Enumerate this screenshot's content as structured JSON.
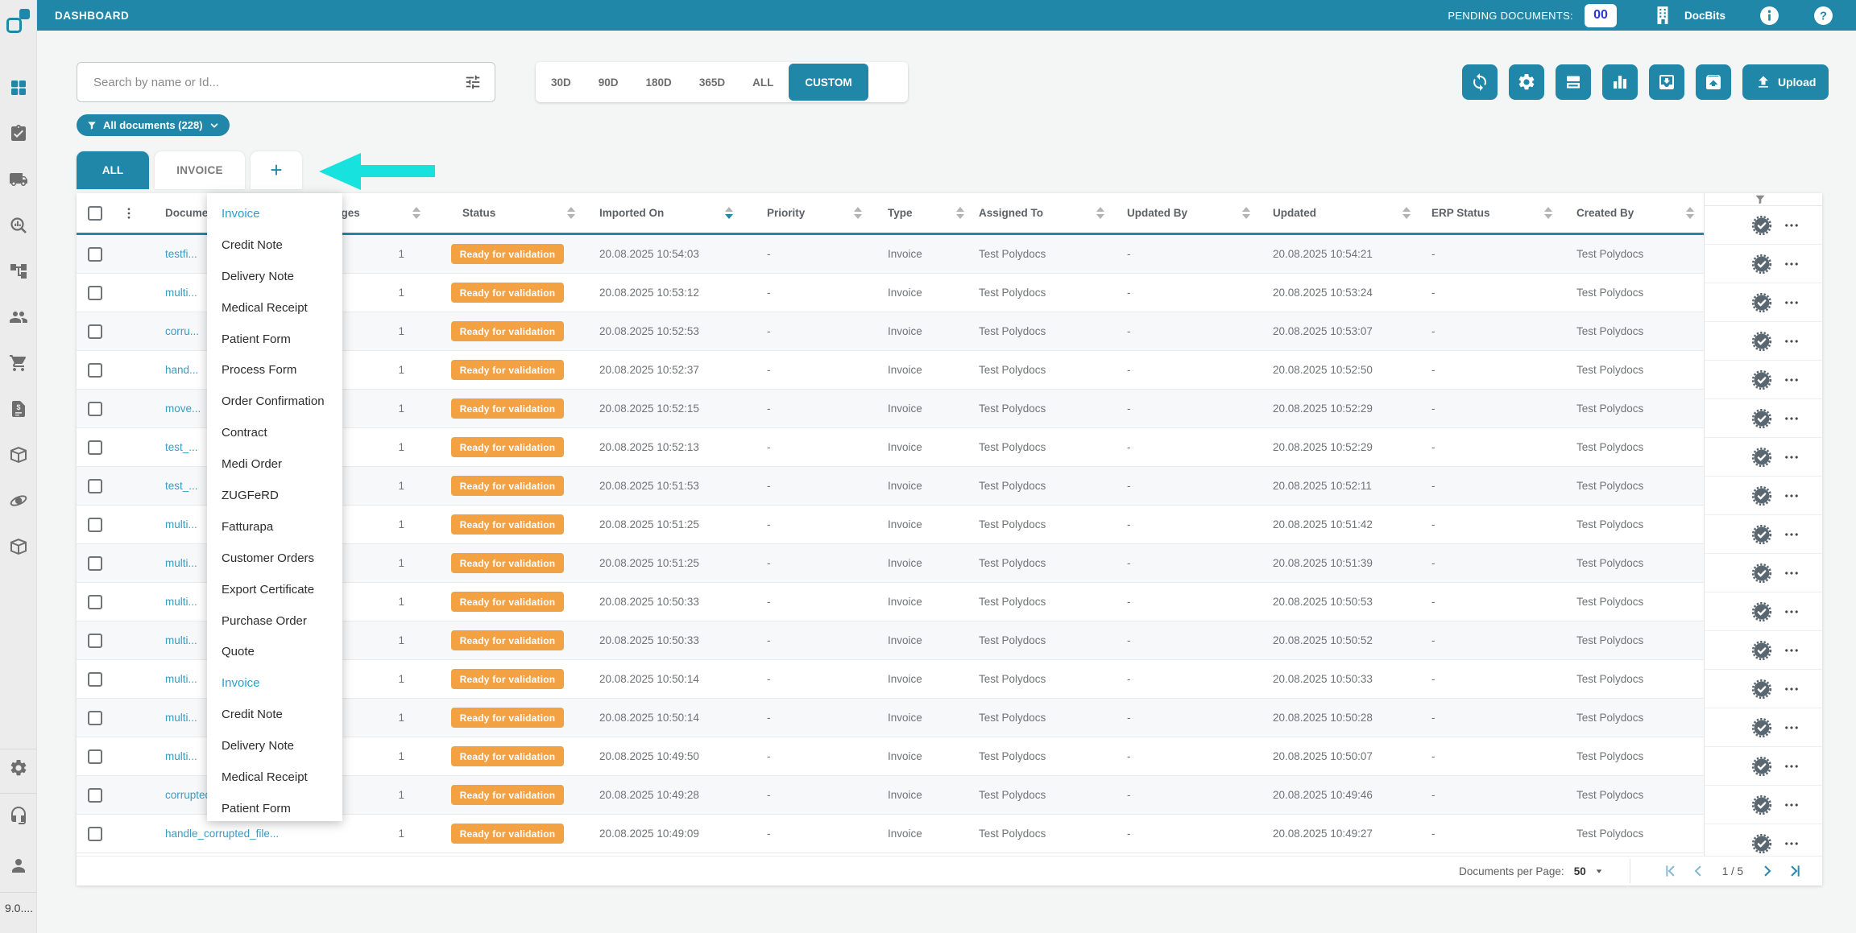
{
  "colors": {
    "accent": "#2187A8",
    "badge_orange": "#F2A143",
    "arrow_cyan": "#17E2DD",
    "link": "#3A9CC2",
    "pending_count": "#2D35D8"
  },
  "topbar": {
    "title": "DASHBOARD",
    "pending_label": "PENDING DOCUMENTS:",
    "pending_count": "00",
    "brand": "DocBits",
    "brand_icon": "building",
    "info_icon": "info",
    "help_icon": "help"
  },
  "sidebar": {
    "items": [
      {
        "icon": "dashboard",
        "active": true
      },
      {
        "icon": "clipboard-check",
        "active": false
      },
      {
        "icon": "truck",
        "active": false
      },
      {
        "icon": "search-chart",
        "active": false
      },
      {
        "icon": "workflow",
        "active": false
      },
      {
        "icon": "users",
        "active": false
      },
      {
        "icon": "cart",
        "active": false
      },
      {
        "icon": "invoice",
        "active": false
      },
      {
        "icon": "package",
        "active": false
      },
      {
        "icon": "orbit",
        "active": false
      },
      {
        "icon": "package-alt",
        "active": false
      }
    ],
    "bottom_items": [
      {
        "icon": "settings"
      },
      {
        "icon": "headset"
      },
      {
        "icon": "person"
      }
    ],
    "version": "9.0...."
  },
  "toolbar": {
    "search_placeholder": "Search by name or Id...",
    "search_filter_icon": "tune",
    "date_filters": [
      {
        "label": "30D",
        "active": false
      },
      {
        "label": "90D",
        "active": false
      },
      {
        "label": "180D",
        "active": false
      },
      {
        "label": "365D",
        "active": false
      },
      {
        "label": "ALL",
        "active": false
      },
      {
        "label": "CUSTOM",
        "active": true
      }
    ],
    "actions": [
      {
        "icon": "sync"
      },
      {
        "icon": "settings"
      },
      {
        "icon": "scanner"
      },
      {
        "icon": "bar-chart"
      },
      {
        "icon": "inbox-import"
      },
      {
        "icon": "unarchive"
      }
    ],
    "upload_label": "Upload",
    "upload_icon": "upload"
  },
  "filter_pill": {
    "icon": "funnel",
    "label": "All documents (228)",
    "chevron": "chevron-down"
  },
  "tabs": {
    "all": "ALL",
    "invoice": "INVOICE",
    "add": "+"
  },
  "type_menu": {
    "items": [
      {
        "label": "Invoice",
        "highlighted": true
      },
      {
        "label": "Credit Note",
        "highlighted": false
      },
      {
        "label": "Delivery Note",
        "highlighted": false
      },
      {
        "label": "Medical Receipt",
        "highlighted": false
      },
      {
        "label": "Patient Form",
        "highlighted": false
      },
      {
        "label": "Process Form",
        "highlighted": false
      },
      {
        "label": "Order Confirmation",
        "highlighted": false
      },
      {
        "label": "Contract",
        "highlighted": false
      },
      {
        "label": "Medi Order",
        "highlighted": false
      },
      {
        "label": "ZUGFeRD",
        "highlighted": false
      },
      {
        "label": "Fatturapa",
        "highlighted": false
      },
      {
        "label": "Customer Orders",
        "highlighted": false
      },
      {
        "label": "Export Certificate",
        "highlighted": false
      },
      {
        "label": "Purchase Order",
        "highlighted": false
      },
      {
        "label": "Quote",
        "highlighted": false
      },
      {
        "label": "Invoice",
        "highlighted": true
      },
      {
        "label": "Credit Note",
        "highlighted": false
      },
      {
        "label": "Delivery Note",
        "highlighted": false
      },
      {
        "label": "Medical Receipt",
        "highlighted": false
      },
      {
        "label": "Patient Form",
        "highlighted": false
      }
    ]
  },
  "table": {
    "kebab_icon": "kebab",
    "columns": [
      {
        "label": "Document Name"
      },
      {
        "label": "Pages"
      },
      {
        "label": "Status"
      },
      {
        "label": "Imported On",
        "sorted": "desc"
      },
      {
        "label": "Priority"
      },
      {
        "label": "Type"
      },
      {
        "label": "Assigned To"
      },
      {
        "label": "Updated By"
      },
      {
        "label": "Updated"
      },
      {
        "label": "ERP Status"
      },
      {
        "label": "Created By"
      }
    ],
    "rows": [
      {
        "name": "testfi...",
        "pages": "1",
        "status": "Ready for validation",
        "imported": "20.08.2025 10:54:03",
        "priority": "-",
        "type": "Invoice",
        "assigned_to": "Test Polydocs",
        "updated_by": "-",
        "updated": "20.08.2025 10:54:21",
        "erp_status": "-",
        "created_by": "Test Polydocs"
      },
      {
        "name": "multi...",
        "pages": "1",
        "status": "Ready for validation",
        "imported": "20.08.2025 10:53:12",
        "priority": "-",
        "type": "Invoice",
        "assigned_to": "Test Polydocs",
        "updated_by": "-",
        "updated": "20.08.2025 10:53:24",
        "erp_status": "-",
        "created_by": "Test Polydocs"
      },
      {
        "name": "corru...",
        "pages": "1",
        "status": "Ready for validation",
        "imported": "20.08.2025 10:52:53",
        "priority": "-",
        "type": "Invoice",
        "assigned_to": "Test Polydocs",
        "updated_by": "-",
        "updated": "20.08.2025 10:53:07",
        "erp_status": "-",
        "created_by": "Test Polydocs"
      },
      {
        "name": "hand...",
        "pages": "1",
        "status": "Ready for validation",
        "imported": "20.08.2025 10:52:37",
        "priority": "-",
        "type": "Invoice",
        "assigned_to": "Test Polydocs",
        "updated_by": "-",
        "updated": "20.08.2025 10:52:50",
        "erp_status": "-",
        "created_by": "Test Polydocs"
      },
      {
        "name": "move...",
        "pages": "1",
        "status": "Ready for validation",
        "imported": "20.08.2025 10:52:15",
        "priority": "-",
        "type": "Invoice",
        "assigned_to": "Test Polydocs",
        "updated_by": "-",
        "updated": "20.08.2025 10:52:29",
        "erp_status": "-",
        "created_by": "Test Polydocs"
      },
      {
        "name": "test_...",
        "pages": "1",
        "status": "Ready for validation",
        "imported": "20.08.2025 10:52:13",
        "priority": "-",
        "type": "Invoice",
        "assigned_to": "Test Polydocs",
        "updated_by": "-",
        "updated": "20.08.2025 10:52:29",
        "erp_status": "-",
        "created_by": "Test Polydocs"
      },
      {
        "name": "test_...",
        "pages": "1",
        "status": "Ready for validation",
        "imported": "20.08.2025 10:51:53",
        "priority": "-",
        "type": "Invoice",
        "assigned_to": "Test Polydocs",
        "updated_by": "-",
        "updated": "20.08.2025 10:52:11",
        "erp_status": "-",
        "created_by": "Test Polydocs"
      },
      {
        "name": "multi...",
        "pages": "1",
        "status": "Ready for validation",
        "imported": "20.08.2025 10:51:25",
        "priority": "-",
        "type": "Invoice",
        "assigned_to": "Test Polydocs",
        "updated_by": "-",
        "updated": "20.08.2025 10:51:42",
        "erp_status": "-",
        "created_by": "Test Polydocs"
      },
      {
        "name": "multi...",
        "pages": "1",
        "status": "Ready for validation",
        "imported": "20.08.2025 10:51:25",
        "priority": "-",
        "type": "Invoice",
        "assigned_to": "Test Polydocs",
        "updated_by": "-",
        "updated": "20.08.2025 10:51:39",
        "erp_status": "-",
        "created_by": "Test Polydocs"
      },
      {
        "name": "multi...",
        "pages": "1",
        "status": "Ready for validation",
        "imported": "20.08.2025 10:50:33",
        "priority": "-",
        "type": "Invoice",
        "assigned_to": "Test Polydocs",
        "updated_by": "-",
        "updated": "20.08.2025 10:50:53",
        "erp_status": "-",
        "created_by": "Test Polydocs"
      },
      {
        "name": "multi...",
        "pages": "1",
        "status": "Ready for validation",
        "imported": "20.08.2025 10:50:33",
        "priority": "-",
        "type": "Invoice",
        "assigned_to": "Test Polydocs",
        "updated_by": "-",
        "updated": "20.08.2025 10:50:52",
        "erp_status": "-",
        "created_by": "Test Polydocs"
      },
      {
        "name": "multi...",
        "pages": "1",
        "status": "Ready for validation",
        "imported": "20.08.2025 10:50:14",
        "priority": "-",
        "type": "Invoice",
        "assigned_to": "Test Polydocs",
        "updated_by": "-",
        "updated": "20.08.2025 10:50:33",
        "erp_status": "-",
        "created_by": "Test Polydocs"
      },
      {
        "name": "multi...",
        "pages": "1",
        "status": "Ready for validation",
        "imported": "20.08.2025 10:50:14",
        "priority": "-",
        "type": "Invoice",
        "assigned_to": "Test Polydocs",
        "updated_by": "-",
        "updated": "20.08.2025 10:50:28",
        "erp_status": "-",
        "created_by": "Test Polydocs"
      },
      {
        "name": "multi...",
        "pages": "1",
        "status": "Ready for validation",
        "imported": "20.08.2025 10:49:50",
        "priority": "-",
        "type": "Invoice",
        "assigned_to": "Test Polydocs",
        "updated_by": "-",
        "updated": "20.08.2025 10:50:07",
        "erp_status": "-",
        "created_by": "Test Polydocs"
      },
      {
        "name": "corrupted_document...",
        "pages": "1",
        "status": "Ready for validation",
        "imported": "20.08.2025 10:49:28",
        "priority": "-",
        "type": "Invoice",
        "assigned_to": "Test Polydocs",
        "updated_by": "-",
        "updated": "20.08.2025 10:49:46",
        "erp_status": "-",
        "created_by": "Test Polydocs"
      },
      {
        "name": "handle_corrupted_file...",
        "pages": "1",
        "status": "Ready for validation",
        "imported": "20.08.2025 10:49:09",
        "priority": "-",
        "type": "Invoice",
        "assigned_to": "Test Polydocs",
        "updated_by": "-",
        "updated": "20.08.2025 10:49:27",
        "erp_status": "-",
        "created_by": "Test Polydocs"
      }
    ]
  },
  "pinned": {
    "filter_icon": "funnel",
    "row_icon": "badge-check",
    "more_icon": "ellipsis-h"
  },
  "footer": {
    "per_page_label": "Documents per Page:",
    "per_page_value": "50",
    "caret_icon": "caret-down",
    "page_indicator": "1 / 5",
    "icon_first": "page-first",
    "icon_prev": "page-prev",
    "icon_next": "page-next",
    "icon_last": "page-last"
  }
}
